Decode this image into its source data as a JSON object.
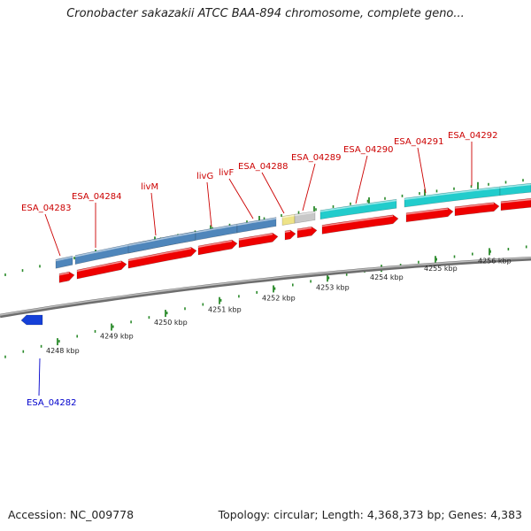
{
  "title": "Cronobacter sakazakii ATCC BAA-894 chromosome, complete geno...",
  "footer": {
    "accession": "Accession: NC_009778",
    "summary": "Topology: circular; Length: 4,368,373 bp; Genes: 4,383"
  },
  "colors": {
    "forward_label": "#cc0000",
    "reverse_label": "#0000cc",
    "cds": "#ee0000",
    "gene_blue": "#4f86bb",
    "gene_cyan": "#22cccc",
    "gene_yellow": "#eee388",
    "gene_gray": "#c8c8c8",
    "reverse_gene": "#1540d8",
    "tick": "#2a8a2a",
    "backbone": "#8c8c8c"
  },
  "kbp_ticks": [
    "4248 kbp",
    "4249 kbp",
    "4250 kbp",
    "4251 kbp",
    "4252 kbp",
    "4253 kbp",
    "4254 kbp",
    "4255 kbp",
    "4256 kbp"
  ],
  "gene_labels": [
    {
      "name": "ESA_04283",
      "strand": "forward"
    },
    {
      "name": "ESA_04284",
      "strand": "forward"
    },
    {
      "name": "livM",
      "strand": "forward"
    },
    {
      "name": "livG",
      "strand": "forward"
    },
    {
      "name": "livF",
      "strand": "forward"
    },
    {
      "name": "ESA_04288",
      "strand": "forward"
    },
    {
      "name": "ESA_04289",
      "strand": "forward"
    },
    {
      "name": "ESA_04290",
      "strand": "forward"
    },
    {
      "name": "ESA_04291",
      "strand": "forward"
    },
    {
      "name": "ESA_04292",
      "strand": "forward"
    },
    {
      "name": "ESA_04282",
      "strand": "reverse"
    }
  ]
}
